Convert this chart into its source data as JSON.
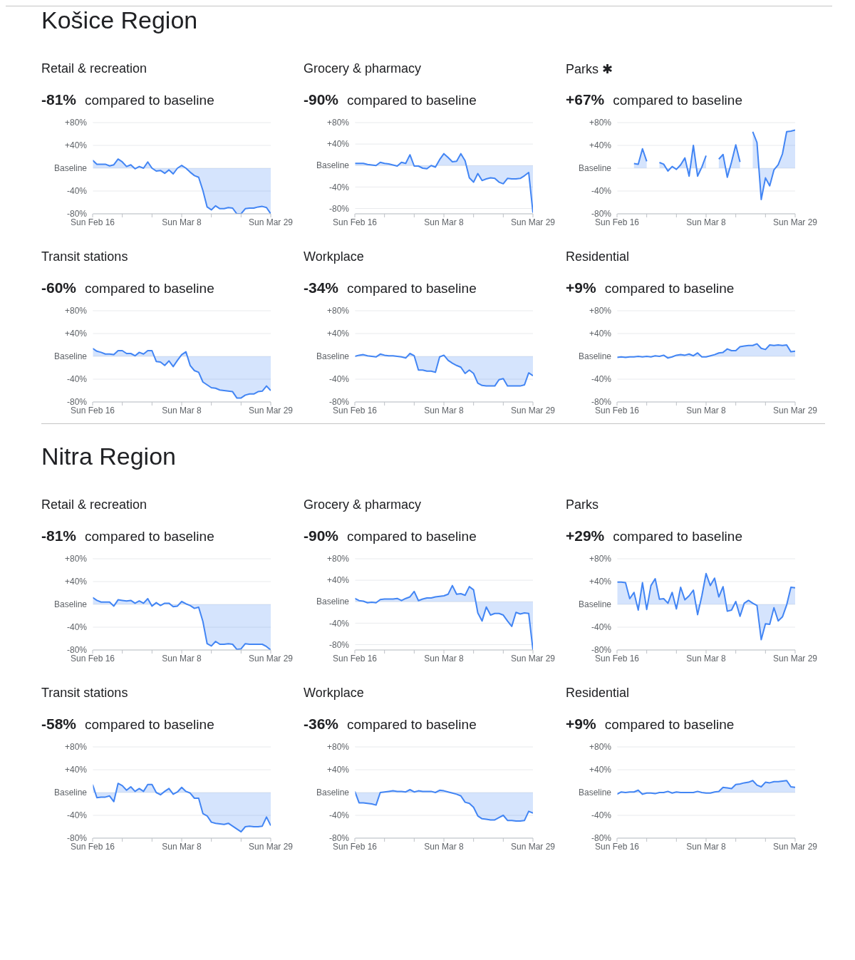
{
  "chart_data": [
    {
      "type": "area",
      "annotations": [
        "Košice Region"
      ],
      "title": "Retail & recreation",
      "subtitle": "-81% compared to baseline",
      "color": "#4285f4",
      "grid": "y",
      "ylim": [
        -80,
        80
      ],
      "yticks": [
        {
          "value": 80,
          "label": "+80%"
        },
        {
          "value": 40,
          "label": "+40%"
        },
        {
          "value": 0,
          "label": "Baseline"
        },
        {
          "value": -40,
          "label": "-40%"
        },
        {
          "value": -80,
          "label": "-80%"
        }
      ],
      "xlim": [
        "--02-16",
        "--03-29"
      ],
      "xticks": [
        {
          "value": "--02-16",
          "label": "Sun Feb 16"
        },
        {
          "value": "--02-23",
          "label": null
        },
        {
          "value": "--03-01",
          "label": null
        },
        {
          "value": "--03-08",
          "label": "Sun Mar 8"
        },
        {
          "value": "--03-15",
          "label": null
        },
        {
          "value": "--03-22",
          "label": null
        },
        {
          "value": "--03-29",
          "label": "Sun Mar 29"
        }
      ],
      "x": [
        "--02-16",
        "--02-17",
        "--02-18",
        "--02-19",
        "--02-20",
        "--02-21",
        "--02-22",
        "--02-23",
        "--02-24",
        "--02-25",
        "--02-26",
        "--02-27",
        "--02-28",
        "--02-29",
        "--03-01",
        "--03-02",
        "--03-03",
        "--03-04",
        "--03-05",
        "--03-06",
        "--03-07",
        "--03-08",
        "--03-09",
        "--03-10",
        "--03-11",
        "--03-12",
        "--03-13",
        "--03-14",
        "--03-15",
        "--03-16",
        "--03-17",
        "--03-18",
        "--03-19",
        "--03-20",
        "--03-21",
        "--03-22",
        "--03-23",
        "--03-24",
        "--03-25",
        "--03-26",
        "--03-27",
        "--03-28",
        "--03-29"
      ],
      "values": [
        14,
        7,
        7,
        7,
        4,
        6,
        16,
        11,
        3,
        6,
        -1,
        3,
        0,
        11,
        0,
        -5,
        -4,
        -9,
        -3,
        -10,
        0,
        5,
        0,
        -7,
        -13,
        -16,
        -39,
        -68,
        -73,
        -66,
        -71,
        -71,
        -69,
        -70,
        -80,
        -80,
        -71,
        -70,
        -70,
        -68,
        -67,
        -69,
        -80
      ]
    },
    {
      "type": "area",
      "title": "Grocery & pharmacy",
      "subtitle": "-90% compared to baseline",
      "color": "#4285f4",
      "grid": "y",
      "ylim": [
        -90,
        80
      ],
      "yticks": [
        {
          "value": 80,
          "label": "+80%"
        },
        {
          "value": 40,
          "label": "+40%"
        },
        {
          "value": 0,
          "label": "Baseline"
        },
        {
          "value": -40,
          "label": "-40%"
        },
        {
          "value": -80,
          "label": "-80%"
        }
      ],
      "xlim": [
        "--02-16",
        "--03-29"
      ],
      "xticks": [
        {
          "value": "--02-16",
          "label": "Sun Feb 16"
        },
        {
          "value": "--02-23",
          "label": null
        },
        {
          "value": "--03-01",
          "label": null
        },
        {
          "value": "--03-08",
          "label": "Sun Mar 8"
        },
        {
          "value": "--03-15",
          "label": null
        },
        {
          "value": "--03-22",
          "label": null
        },
        {
          "value": "--03-29",
          "label": "Sun Mar 29"
        }
      ],
      "x": [
        "--02-16",
        "--02-17",
        "--02-18",
        "--02-19",
        "--02-20",
        "--02-21",
        "--02-22",
        "--02-23",
        "--02-24",
        "--02-25",
        "--02-26",
        "--02-27",
        "--02-28",
        "--02-29",
        "--03-01",
        "--03-02",
        "--03-03",
        "--03-04",
        "--03-05",
        "--03-06",
        "--03-07",
        "--03-08",
        "--03-09",
        "--03-10",
        "--03-11",
        "--03-12",
        "--03-13",
        "--03-14",
        "--03-15",
        "--03-16",
        "--03-17",
        "--03-18",
        "--03-19",
        "--03-20",
        "--03-21",
        "--03-22",
        "--03-23",
        "--03-24",
        "--03-25",
        "--03-26",
        "--03-27",
        "--03-28",
        "--03-29"
      ],
      "values": [
        4,
        4,
        4,
        2,
        1,
        0,
        6,
        4,
        3,
        1,
        -1,
        6,
        4,
        20,
        -1,
        -1,
        -5,
        -6,
        0,
        -3,
        11,
        22,
        15,
        7,
        8,
        22,
        9,
        -23,
        -31,
        -15,
        -28,
        -25,
        -23,
        -24,
        -31,
        -34,
        -24,
        -25,
        -25,
        -24,
        -19,
        -13,
        -88
      ]
    },
    {
      "type": "area",
      "title": "Parks ✱",
      "subtitle": "+67% compared to baseline",
      "color": "#4285f4",
      "grid": "y",
      "ylim": [
        -80,
        80
      ],
      "yticks": [
        {
          "value": 80,
          "label": "+80%"
        },
        {
          "value": 40,
          "label": "+40%"
        },
        {
          "value": 0,
          "label": "Baseline"
        },
        {
          "value": -40,
          "label": "-40%"
        },
        {
          "value": -80,
          "label": "-80%"
        }
      ],
      "xlim": [
        "--02-16",
        "--03-29"
      ],
      "xticks": [
        {
          "value": "--02-16",
          "label": "Sun Feb 16"
        },
        {
          "value": "--02-23",
          "label": null
        },
        {
          "value": "--03-01",
          "label": null
        },
        {
          "value": "--03-08",
          "label": "Sun Mar 8"
        },
        {
          "value": "--03-15",
          "label": null
        },
        {
          "value": "--03-22",
          "label": null
        },
        {
          "value": "--03-29",
          "label": "Sun Mar 29"
        }
      ],
      "x": [
        null,
        null,
        null,
        null,
        "--02-20",
        "--02-21",
        "--02-22",
        "--02-23",
        null,
        null,
        "--02-26",
        "--02-27",
        "--02-28",
        "--02-29",
        "--03-01",
        "--03-02",
        "--03-03",
        "--03-04",
        "--03-05",
        "--03-06",
        "--03-07",
        "--03-08",
        null,
        null,
        "--03-11",
        "--03-12",
        "--03-13",
        "--03-14",
        "--03-15",
        "--03-16",
        null,
        null,
        "--03-19",
        "--03-20",
        "--03-21",
        "--03-22",
        "--03-23",
        "--03-24",
        "--03-25",
        "--03-26",
        "--03-27",
        "--03-28",
        "--03-29"
      ],
      "values": [
        null,
        null,
        null,
        null,
        8,
        7,
        34,
        12,
        null,
        null,
        10,
        7,
        -5,
        3,
        -2,
        6,
        18,
        -14,
        40,
        -14,
        2,
        22,
        null,
        null,
        16,
        24,
        -16,
        11,
        41,
        11,
        null,
        null,
        64,
        45,
        -55,
        -17,
        -31,
        -3,
        6,
        25,
        64,
        65,
        67
      ]
    },
    {
      "type": "area",
      "title": "Transit stations",
      "subtitle": "-60% compared to baseline",
      "color": "#4285f4",
      "grid": "y",
      "ylim": [
        -80,
        80
      ],
      "yticks": [
        {
          "value": 80,
          "label": "+80%"
        },
        {
          "value": 40,
          "label": "+40%"
        },
        {
          "value": 0,
          "label": "Baseline"
        },
        {
          "value": -40,
          "label": "-40%"
        },
        {
          "value": -80,
          "label": "-80%"
        }
      ],
      "xlim": [
        "--02-16",
        "--03-29"
      ],
      "xticks": [
        {
          "value": "--02-16",
          "label": "Sun Feb 16"
        },
        {
          "value": "--02-23",
          "label": null
        },
        {
          "value": "--03-01",
          "label": null
        },
        {
          "value": "--03-08",
          "label": "Sun Mar 8"
        },
        {
          "value": "--03-15",
          "label": null
        },
        {
          "value": "--03-22",
          "label": null
        },
        {
          "value": "--03-29",
          "label": "Sun Mar 29"
        }
      ],
      "x": [
        "--02-16",
        "--02-17",
        "--02-18",
        "--02-19",
        "--02-20",
        "--02-21",
        "--02-22",
        "--02-23",
        "--02-24",
        "--02-25",
        "--02-26",
        "--02-27",
        "--02-28",
        "--02-29",
        "--03-01",
        "--03-02",
        "--03-03",
        "--03-04",
        "--03-05",
        "--03-06",
        "--03-07",
        "--03-08",
        "--03-09",
        "--03-10",
        "--03-11",
        "--03-12",
        "--03-13",
        "--03-14",
        "--03-15",
        "--03-16",
        "--03-17",
        "--03-18",
        "--03-19",
        "--03-20",
        "--03-21",
        "--03-22",
        "--03-23",
        "--03-24",
        "--03-25",
        "--03-26",
        "--03-27",
        "--03-28",
        "--03-29"
      ],
      "values": [
        14,
        9,
        7,
        4,
        4,
        3,
        10,
        10,
        5,
        5,
        1,
        7,
        4,
        10,
        10,
        -9,
        -10,
        -16,
        -8,
        -18,
        -7,
        3,
        8,
        -16,
        -25,
        -28,
        -45,
        -50,
        -55,
        -56,
        -59,
        -60,
        -61,
        -62,
        -73,
        -73,
        -68,
        -66,
        -66,
        -62,
        -61,
        -52,
        -60
      ]
    },
    {
      "type": "area",
      "title": "Workplace",
      "subtitle": "-34% compared to baseline",
      "color": "#4285f4",
      "grid": "y",
      "ylim": [
        -80,
        80
      ],
      "yticks": [
        {
          "value": 80,
          "label": "+80%"
        },
        {
          "value": 40,
          "label": "+40%"
        },
        {
          "value": 0,
          "label": "Baseline"
        },
        {
          "value": -40,
          "label": "-40%"
        },
        {
          "value": -80,
          "label": "-80%"
        }
      ],
      "xlim": [
        "--02-16",
        "--03-29"
      ],
      "xticks": [
        {
          "value": "--02-16",
          "label": "Sun Feb 16"
        },
        {
          "value": "--02-23",
          "label": null
        },
        {
          "value": "--03-01",
          "label": null
        },
        {
          "value": "--03-08",
          "label": "Sun Mar 8"
        },
        {
          "value": "--03-15",
          "label": null
        },
        {
          "value": "--03-22",
          "label": null
        },
        {
          "value": "--03-29",
          "label": "Sun Mar 29"
        }
      ],
      "x": [
        "--02-16",
        "--02-17",
        "--02-18",
        "--02-19",
        "--02-20",
        "--02-21",
        "--02-22",
        "--02-23",
        "--02-24",
        "--02-25",
        "--02-26",
        "--02-27",
        "--02-28",
        "--02-29",
        "--03-01",
        "--03-02",
        "--03-03",
        "--03-04",
        "--03-05",
        "--03-06",
        "--03-07",
        "--03-08",
        "--03-09",
        "--03-10",
        "--03-11",
        "--03-12",
        "--03-13",
        "--03-14",
        "--03-15",
        "--03-16",
        "--03-17",
        "--03-18",
        "--03-19",
        "--03-20",
        "--03-21",
        "--03-22",
        "--03-23",
        "--03-24",
        "--03-25",
        "--03-26",
        "--03-27",
        "--03-28",
        "--03-29"
      ],
      "values": [
        0,
        2,
        3,
        1,
        0,
        -1,
        4,
        2,
        1,
        1,
        0,
        -1,
        -3,
        5,
        1,
        -24,
        -24,
        -26,
        -26,
        -28,
        -1,
        2,
        -7,
        -12,
        -16,
        -19,
        -30,
        -24,
        -30,
        -47,
        -51,
        -52,
        -52,
        -52,
        -41,
        -39,
        -52,
        -52,
        -52,
        -52,
        -50,
        -29,
        -34
      ]
    },
    {
      "type": "area",
      "title": "Residential",
      "subtitle": "+9% compared to baseline",
      "color": "#4285f4",
      "grid": "y",
      "ylim": [
        -80,
        80
      ],
      "yticks": [
        {
          "value": 80,
          "label": "+80%"
        },
        {
          "value": 40,
          "label": "+40%"
        },
        {
          "value": 0,
          "label": "Baseline"
        },
        {
          "value": -40,
          "label": "-40%"
        },
        {
          "value": -80,
          "label": "-80%"
        }
      ],
      "xlim": [
        "--02-16",
        "--03-29"
      ],
      "xticks": [
        {
          "value": "--02-16",
          "label": "Sun Feb 16"
        },
        {
          "value": "--02-23",
          "label": null
        },
        {
          "value": "--03-01",
          "label": null
        },
        {
          "value": "--03-08",
          "label": "Sun Mar 8"
        },
        {
          "value": "--03-15",
          "label": null
        },
        {
          "value": "--03-22",
          "label": null
        },
        {
          "value": "--03-29",
          "label": "Sun Mar 29"
        }
      ],
      "x": [
        "--02-16",
        "--02-17",
        "--02-18",
        "--02-19",
        "--02-20",
        "--02-21",
        "--02-22",
        "--02-23",
        "--02-24",
        "--02-25",
        "--02-26",
        "--02-27",
        "--02-28",
        "--02-29",
        "--03-01",
        "--03-02",
        "--03-03",
        "--03-04",
        "--03-05",
        "--03-06",
        "--03-07",
        "--03-08",
        "--03-09",
        "--03-10",
        "--03-11",
        "--03-12",
        "--03-13",
        "--03-14",
        "--03-15",
        "--03-16",
        "--03-17",
        "--03-18",
        "--03-19",
        "--03-20",
        "--03-21",
        "--03-22",
        "--03-23",
        "--03-24",
        "--03-25",
        "--03-26",
        "--03-27",
        "--03-28",
        "--03-29"
      ],
      "values": [
        -2,
        -1,
        -2,
        -1,
        -1,
        0,
        -1,
        0,
        -1,
        1,
        0,
        2,
        -3,
        -1,
        2,
        3,
        2,
        4,
        1,
        6,
        -1,
        -1,
        1,
        3,
        6,
        7,
        13,
        10,
        10,
        17,
        18,
        19,
        19,
        22,
        14,
        12,
        20,
        19,
        20,
        19,
        20,
        8,
        9
      ]
    },
    {
      "type": "area",
      "annotations": [
        "Nitra Region"
      ],
      "title": "Retail & recreation",
      "subtitle": "-81% compared to baseline",
      "color": "#4285f4",
      "grid": "y",
      "ylim": [
        -80,
        80
      ],
      "yticks": [
        {
          "value": 80,
          "label": "+80%"
        },
        {
          "value": 40,
          "label": "+40%"
        },
        {
          "value": 0,
          "label": "Baseline"
        },
        {
          "value": -40,
          "label": "-40%"
        },
        {
          "value": -80,
          "label": "-80%"
        }
      ],
      "xlim": [
        "--02-16",
        "--03-29"
      ],
      "xticks": [
        {
          "value": "--02-16",
          "label": "Sun Feb 16"
        },
        {
          "value": "--02-23",
          "label": null
        },
        {
          "value": "--03-01",
          "label": null
        },
        {
          "value": "--03-08",
          "label": "Sun Mar 8"
        },
        {
          "value": "--03-15",
          "label": null
        },
        {
          "value": "--03-22",
          "label": null
        },
        {
          "value": "--03-29",
          "label": "Sun Mar 29"
        }
      ],
      "x": [
        "--02-16",
        "--02-17",
        "--02-18",
        "--02-19",
        "--02-20",
        "--02-21",
        "--02-22",
        "--02-23",
        "--02-24",
        "--02-25",
        "--02-26",
        "--02-27",
        "--02-28",
        "--02-29",
        "--03-01",
        "--03-02",
        "--03-03",
        "--03-04",
        "--03-05",
        "--03-06",
        "--03-07",
        "--03-08",
        "--03-09",
        "--03-10",
        "--03-11",
        "--03-12",
        "--03-13",
        "--03-14",
        "--03-15",
        "--03-16",
        "--03-17",
        "--03-18",
        "--03-19",
        "--03-20",
        "--03-21",
        "--03-22",
        "--03-23",
        "--03-24",
        "--03-25",
        "--03-26",
        "--03-27",
        "--03-28",
        "--03-29"
      ],
      "values": [
        12,
        7,
        4,
        4,
        4,
        -3,
        8,
        7,
        6,
        7,
        2,
        6,
        2,
        10,
        -3,
        3,
        -2,
        2,
        2,
        -4,
        -3,
        5,
        1,
        -2,
        -7,
        -5,
        -30,
        -69,
        -73,
        -65,
        -70,
        -70,
        -69,
        -70,
        -79,
        -78,
        -69,
        -70,
        -70,
        -70,
        -70,
        -74,
        -80
      ]
    },
    {
      "type": "area",
      "title": "Grocery & pharmacy",
      "subtitle": "-90% compared to baseline",
      "color": "#4285f4",
      "grid": "y",
      "ylim": [
        -90,
        80
      ],
      "yticks": [
        {
          "value": 80,
          "label": "+80%"
        },
        {
          "value": 40,
          "label": "+40%"
        },
        {
          "value": 0,
          "label": "Baseline"
        },
        {
          "value": -40,
          "label": "-40%"
        },
        {
          "value": -80,
          "label": "-80%"
        }
      ],
      "xlim": [
        "--02-16",
        "--03-29"
      ],
      "xticks": [
        {
          "value": "--02-16",
          "label": "Sun Feb 16"
        },
        {
          "value": "--02-23",
          "label": null
        },
        {
          "value": "--03-01",
          "label": null
        },
        {
          "value": "--03-08",
          "label": "Sun Mar 8"
        },
        {
          "value": "--03-15",
          "label": null
        },
        {
          "value": "--03-22",
          "label": null
        },
        {
          "value": "--03-29",
          "label": "Sun Mar 29"
        }
      ],
      "x": [
        "--02-16",
        "--02-17",
        "--02-18",
        "--02-19",
        "--02-20",
        "--02-21",
        "--02-22",
        "--02-23",
        "--02-24",
        "--02-25",
        "--02-26",
        "--02-27",
        "--02-28",
        "--02-29",
        "--03-01",
        "--03-02",
        "--03-03",
        "--03-04",
        "--03-05",
        "--03-06",
        "--03-07",
        "--03-08",
        "--03-09",
        "--03-10",
        "--03-11",
        "--03-12",
        "--03-13",
        "--03-14",
        "--03-15",
        "--03-16",
        "--03-17",
        "--03-18",
        "--03-19",
        "--03-20",
        "--03-21",
        "--03-22",
        "--03-23",
        "--03-24",
        "--03-25",
        "--03-26",
        "--03-27",
        "--03-28",
        "--03-29"
      ],
      "values": [
        6,
        2,
        1,
        -2,
        -1,
        -2,
        4,
        5,
        5,
        5,
        6,
        2,
        6,
        9,
        19,
        2,
        5,
        7,
        7,
        9,
        10,
        11,
        14,
        30,
        14,
        15,
        12,
        28,
        22,
        -21,
        -36,
        -10,
        -25,
        -22,
        -22,
        -25,
        -36,
        -46,
        -20,
        -23,
        -21,
        -22,
        -90
      ]
    },
    {
      "type": "area",
      "title": "Parks",
      "subtitle": "+29% compared to baseline",
      "color": "#4285f4",
      "grid": "y",
      "ylim": [
        -80,
        80
      ],
      "yticks": [
        {
          "value": 80,
          "label": "+80%"
        },
        {
          "value": 40,
          "label": "+40%"
        },
        {
          "value": 0,
          "label": "Baseline"
        },
        {
          "value": -40,
          "label": "-40%"
        },
        {
          "value": -80,
          "label": "-80%"
        }
      ],
      "xlim": [
        "--02-16",
        "--03-29"
      ],
      "xticks": [
        {
          "value": "--02-16",
          "label": "Sun Feb 16"
        },
        {
          "value": "--02-23",
          "label": null
        },
        {
          "value": "--03-01",
          "label": null
        },
        {
          "value": "--03-08",
          "label": "Sun Mar 8"
        },
        {
          "value": "--03-15",
          "label": null
        },
        {
          "value": "--03-22",
          "label": null
        },
        {
          "value": "--03-29",
          "label": "Sun Mar 29"
        }
      ],
      "x": [
        "--02-16",
        "--02-17",
        "--02-18",
        "--02-19",
        "--02-20",
        "--02-21",
        "--02-22",
        "--02-23",
        "--02-24",
        "--02-25",
        "--02-26",
        "--02-27",
        "--02-28",
        "--02-29",
        "--03-01",
        "--03-02",
        "--03-03",
        "--03-04",
        "--03-05",
        "--03-06",
        "--03-07",
        "--03-08",
        "--03-09",
        "--03-10",
        "--03-11",
        "--03-12",
        "--03-13",
        "--03-14",
        "--03-15",
        "--03-16",
        "--03-17",
        "--03-18",
        "--03-19",
        "--03-20",
        "--03-21",
        "--03-22",
        "--03-23",
        "--03-24",
        "--03-25",
        "--03-26",
        "--03-27",
        "--03-28",
        "--03-29"
      ],
      "values": [
        39,
        39,
        38,
        10,
        21,
        -10,
        38,
        -9,
        33,
        45,
        9,
        10,
        2,
        21,
        -8,
        30,
        8,
        15,
        25,
        -18,
        15,
        54,
        33,
        46,
        13,
        31,
        -12,
        -10,
        5,
        -21,
        2,
        7,
        2,
        -2,
        -62,
        -34,
        -35,
        -6,
        -29,
        -22,
        -1,
        30,
        29
      ]
    },
    {
      "type": "area",
      "title": "Transit stations",
      "subtitle": "-58% compared to baseline",
      "color": "#4285f4",
      "grid": "y",
      "ylim": [
        -80,
        80
      ],
      "yticks": [
        {
          "value": 80,
          "label": "+80%"
        },
        {
          "value": 40,
          "label": "+40%"
        },
        {
          "value": 0,
          "label": "Baseline"
        },
        {
          "value": -40,
          "label": "-40%"
        },
        {
          "value": -80,
          "label": "-80%"
        }
      ],
      "xlim": [
        "--02-16",
        "--03-29"
      ],
      "xticks": [
        {
          "value": "--02-16",
          "label": "Sun Feb 16"
        },
        {
          "value": "--02-23",
          "label": null
        },
        {
          "value": "--03-01",
          "label": null
        },
        {
          "value": "--03-08",
          "label": "Sun Mar 8"
        },
        {
          "value": "--03-15",
          "label": null
        },
        {
          "value": "--03-22",
          "label": null
        },
        {
          "value": "--03-29",
          "label": "Sun Mar 29"
        }
      ],
      "x": [
        "--02-16",
        "--02-17",
        "--02-18",
        "--02-19",
        "--02-20",
        "--02-21",
        "--02-22",
        "--02-23",
        "--02-24",
        "--02-25",
        "--02-26",
        "--02-27",
        "--02-28",
        "--02-29",
        "--03-01",
        "--03-02",
        "--03-03",
        "--03-04",
        "--03-05",
        "--03-06",
        "--03-07",
        "--03-08",
        "--03-09",
        "--03-10",
        "--03-11",
        "--03-12",
        "--03-13",
        "--03-14",
        "--03-15",
        "--03-16",
        "--03-17",
        "--03-18",
        "--03-19",
        "--03-20",
        "--03-21",
        "--03-22",
        "--03-23",
        "--03-24",
        "--03-25",
        "--03-26",
        "--03-27",
        "--03-28",
        "--03-29"
      ],
      "values": [
        14,
        -9,
        -8,
        -8,
        -6,
        -16,
        16,
        12,
        4,
        10,
        2,
        7,
        2,
        14,
        14,
        0,
        -4,
        2,
        7,
        -3,
        1,
        9,
        2,
        -1,
        -10,
        -10,
        -37,
        -41,
        -52,
        -54,
        -55,
        -56,
        -54,
        -59,
        -64,
        -69,
        -60,
        -59,
        -60,
        -60,
        -59,
        -43,
        -58
      ]
    },
    {
      "type": "area",
      "title": "Workplace",
      "subtitle": "-36% compared to baseline",
      "color": "#4285f4",
      "grid": "y",
      "ylim": [
        -80,
        80
      ],
      "yticks": [
        {
          "value": 80,
          "label": "+80%"
        },
        {
          "value": 40,
          "label": "+40%"
        },
        {
          "value": 0,
          "label": "Baseline"
        },
        {
          "value": -40,
          "label": "-40%"
        },
        {
          "value": -80,
          "label": "-80%"
        }
      ],
      "xlim": [
        "--02-16",
        "--03-29"
      ],
      "xticks": [
        {
          "value": "--02-16",
          "label": "Sun Feb 16"
        },
        {
          "value": "--02-23",
          "label": null
        },
        {
          "value": "--03-01",
          "label": null
        },
        {
          "value": "--03-08",
          "label": "Sun Mar 8"
        },
        {
          "value": "--03-15",
          "label": null
        },
        {
          "value": "--03-22",
          "label": null
        },
        {
          "value": "--03-29",
          "label": "Sun Mar 29"
        }
      ],
      "x": [
        "--02-16",
        "--02-17",
        "--02-18",
        "--02-19",
        "--02-20",
        "--02-21",
        "--02-22",
        "--02-23",
        "--02-24",
        "--02-25",
        "--02-26",
        "--02-27",
        "--02-28",
        "--02-29",
        "--03-01",
        "--03-02",
        "--03-03",
        "--03-04",
        "--03-05",
        "--03-06",
        "--03-07",
        "--03-08",
        "--03-09",
        "--03-10",
        "--03-11",
        "--03-12",
        "--03-13",
        "--03-14",
        "--03-15",
        "--03-16",
        "--03-17",
        "--03-18",
        "--03-19",
        "--03-20",
        "--03-21",
        "--03-22",
        "--03-23",
        "--03-24",
        "--03-25",
        "--03-26",
        "--03-27",
        "--03-28",
        "--03-29"
      ],
      "values": [
        2,
        -18,
        -18,
        -19,
        -20,
        -22,
        0,
        1,
        2,
        3,
        2,
        2,
        1,
        5,
        1,
        3,
        2,
        2,
        2,
        0,
        4,
        3,
        1,
        -1,
        -3,
        -6,
        -17,
        -19,
        -26,
        -41,
        -46,
        -47,
        -48,
        -48,
        -44,
        -40,
        -49,
        -49,
        -50,
        -50,
        -49,
        -33,
        -36
      ]
    },
    {
      "type": "area",
      "title": "Residential",
      "subtitle": "+9% compared to baseline",
      "color": "#4285f4",
      "grid": "y",
      "ylim": [
        -80,
        80
      ],
      "yticks": [
        {
          "value": 80,
          "label": "+80%"
        },
        {
          "value": 40,
          "label": "+40%"
        },
        {
          "value": 0,
          "label": "Baseline"
        },
        {
          "value": -40,
          "label": "-40%"
        },
        {
          "value": -80,
          "label": "-80%"
        }
      ],
      "xlim": [
        "--02-16",
        "--03-29"
      ],
      "xticks": [
        {
          "value": "--02-16",
          "label": "Sun Feb 16"
        },
        {
          "value": "--02-23",
          "label": null
        },
        {
          "value": "--03-01",
          "label": null
        },
        {
          "value": "--03-08",
          "label": "Sun Mar 8"
        },
        {
          "value": "--03-15",
          "label": null
        },
        {
          "value": "--03-22",
          "label": null
        },
        {
          "value": "--03-29",
          "label": "Sun Mar 29"
        }
      ],
      "x": [
        "--02-16",
        "--02-17",
        "--02-18",
        "--02-19",
        "--02-20",
        "--02-21",
        "--02-22",
        "--02-23",
        "--02-24",
        "--02-25",
        "--02-26",
        "--02-27",
        "--02-28",
        "--02-29",
        "--03-01",
        "--03-02",
        "--03-03",
        "--03-04",
        "--03-05",
        "--03-06",
        "--03-07",
        "--03-08",
        "--03-09",
        "--03-10",
        "--03-11",
        "--03-12",
        "--03-13",
        "--03-14",
        "--03-15",
        "--03-16",
        "--03-17",
        "--03-18",
        "--03-19",
        "--03-20",
        "--03-21",
        "--03-22",
        "--03-23",
        "--03-24",
        "--03-25",
        "--03-26",
        "--03-27",
        "--03-28",
        "--03-29"
      ],
      "values": [
        -3,
        1,
        0,
        1,
        1,
        4,
        -3,
        -1,
        -1,
        -2,
        0,
        0,
        2,
        -1,
        1,
        0,
        0,
        0,
        0,
        2,
        0,
        -1,
        -1,
        1,
        2,
        9,
        8,
        7,
        14,
        15,
        17,
        18,
        21,
        13,
        10,
        18,
        17,
        19,
        19,
        20,
        21,
        10,
        9
      ]
    }
  ]
}
